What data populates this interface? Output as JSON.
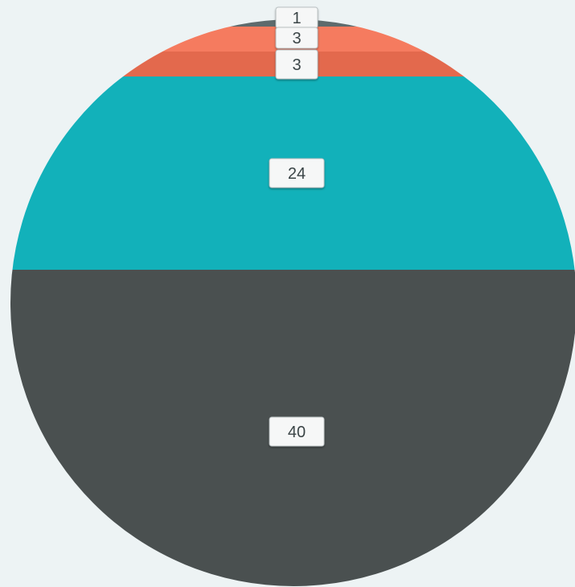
{
  "chart_data": {
    "type": "pie",
    "subtype": "horizontal-segmented-circle",
    "title": "",
    "segments_top_to_bottom": [
      {
        "value": 1,
        "color": "#5e6b6d"
      },
      {
        "value": 3,
        "color": "#f57b5f"
      },
      {
        "value": 3,
        "color": "#e3694d"
      },
      {
        "value": 24,
        "color": "#12b1ba"
      },
      {
        "value": 40,
        "color": "#4a5050"
      }
    ],
    "data_labels": [
      "1",
      "3",
      "3",
      "24",
      "40"
    ],
    "legend": "none",
    "grid": false
  },
  "colors": {
    "background": "#edf3f4",
    "label_box": "#f6f7f7",
    "label_text": "#3b4547"
  }
}
